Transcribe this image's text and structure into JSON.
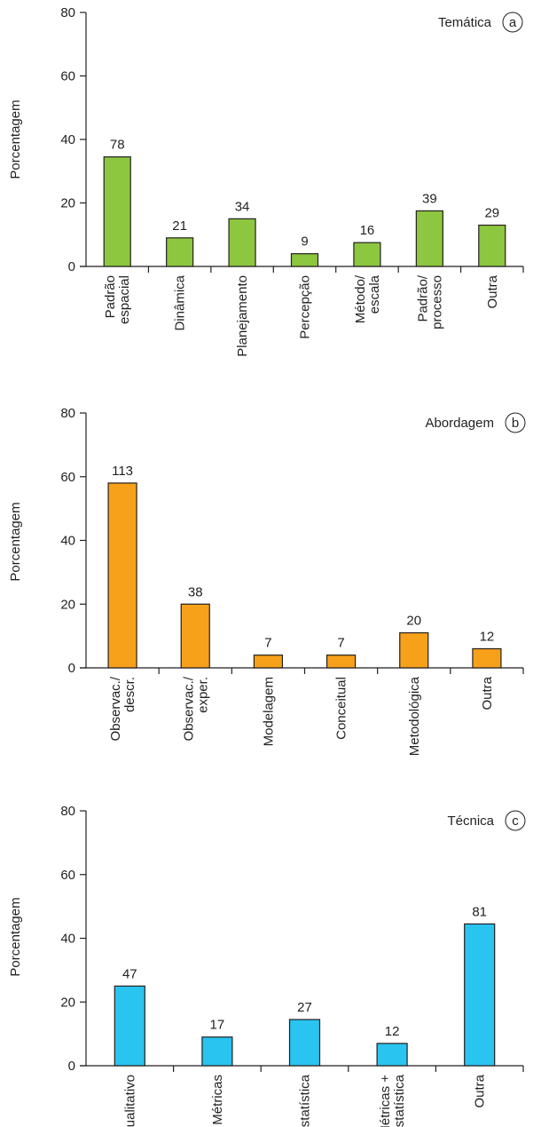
{
  "chart_data": [
    {
      "type": "bar",
      "title": "Temática",
      "panel_letter": "a",
      "ylabel": "Porcentagem",
      "ylim": [
        0,
        80
      ],
      "yticks": [
        "0",
        "20",
        "40",
        "60",
        "80"
      ],
      "bar_color": "#8dc63f",
      "categories": [
        [
          "Padrão",
          "espacial"
        ],
        [
          "Dinâmica"
        ],
        [
          "Planejamento"
        ],
        [
          "Percepção"
        ],
        [
          "Método/",
          "escala"
        ],
        [
          "Padrão/",
          "processo"
        ],
        [
          "Outra"
        ]
      ],
      "values": [
        34.5,
        9,
        15,
        4,
        7.5,
        17.5,
        13
      ],
      "value_labels": [
        "78",
        "21",
        "34",
        "9",
        "16",
        "39",
        "29"
      ]
    },
    {
      "type": "bar",
      "title": "Abordagem",
      "panel_letter": "b",
      "ylabel": "Porcentagem",
      "ylim": [
        0,
        80
      ],
      "yticks": [
        "0",
        "20",
        "40",
        "60",
        "80"
      ],
      "bar_color": "#f7a11a",
      "categories": [
        [
          "Observac./",
          "descr."
        ],
        [
          "Observac./",
          "exper."
        ],
        [
          "Modelagem"
        ],
        [
          "Conceitual"
        ],
        [
          "Metodológica"
        ],
        [
          "Outra"
        ]
      ],
      "values": [
        58,
        20,
        4,
        4,
        11,
        6
      ],
      "value_labels": [
        "113",
        "38",
        "7",
        "7",
        "20",
        "12"
      ]
    },
    {
      "type": "bar",
      "title": "Técnica",
      "panel_letter": "c",
      "ylabel": "Porcentagem",
      "ylim": [
        0,
        80
      ],
      "yticks": [
        "0",
        "20",
        "40",
        "60",
        "80"
      ],
      "bar_color": "#29c4f0",
      "categories": [
        [
          "Qualitativo"
        ],
        [
          "Métricas"
        ],
        [
          "Estatística"
        ],
        [
          "Métricas +",
          "estatística"
        ],
        [
          "Outra"
        ]
      ],
      "values": [
        25,
        9,
        14.5,
        7,
        44.5
      ],
      "value_labels": [
        "47",
        "17",
        "27",
        "12",
        "81"
      ]
    }
  ]
}
